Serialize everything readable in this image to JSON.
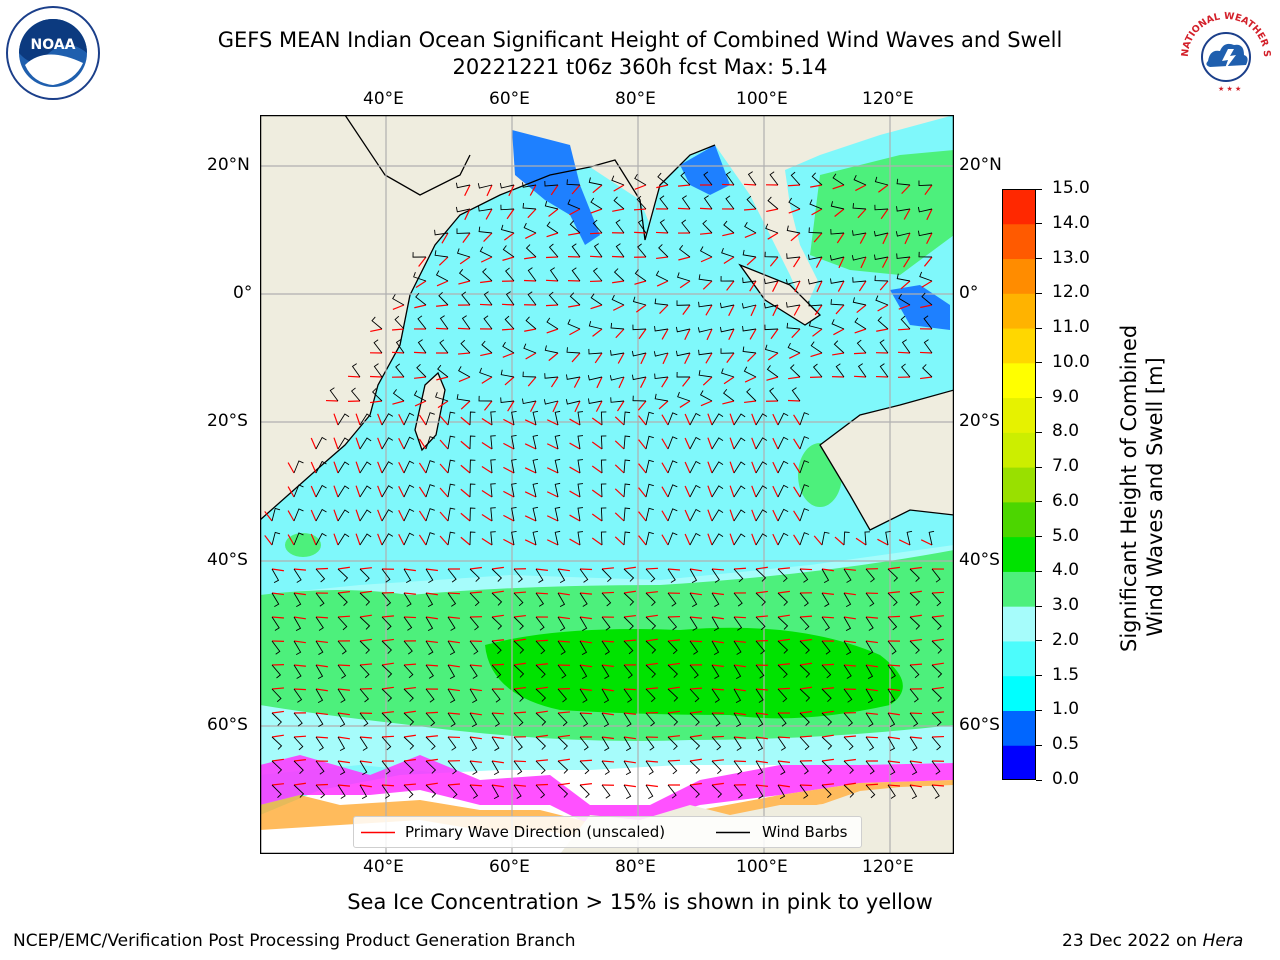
{
  "title": {
    "line1": "GEFS MEAN Indian Ocean Significant Height of Combined Wind Waves and Swell",
    "line2": "20221221 t06z 360h fcst   Max: 5.14"
  },
  "logos": {
    "left": "NOAA",
    "right": "NATIONAL WEATHER SERVICE"
  },
  "map": {
    "lon_labels": [
      "40°E",
      "60°E",
      "80°E",
      "100°E",
      "120°E"
    ],
    "lat_labels": [
      "20°N",
      "0°",
      "20°S",
      "40°S",
      "60°S"
    ],
    "colors": {
      "land": "#efeddf",
      "sea_base": "#7ff8fb",
      "sea_light": "#a6fcfb",
      "wave_green_light": "#4df07c",
      "wave_green": "#00e300",
      "wave_blue": "#1e80ff",
      "wave_darkblue": "#0000ff",
      "ice_magenta": "#ff33ff",
      "ice_orange": "#ffaa33",
      "ice_white": "#ffffff"
    }
  },
  "colorbar": {
    "ticks": [
      "0.0",
      "0.5",
      "1.0",
      "1.5",
      "2.0",
      "3.0",
      "4.0",
      "5.0",
      "6.0",
      "7.0",
      "8.0",
      "9.0",
      "10.0",
      "11.0",
      "12.0",
      "13.0",
      "14.0",
      "15.0"
    ],
    "colors": [
      "#0000ff",
      "#0066ff",
      "#00ffff",
      "#4cfcfc",
      "#a6fcfb",
      "#4df07c",
      "#00e300",
      "#4cd600",
      "#99e000",
      "#ccee00",
      "#e6f200",
      "#ffff00",
      "#ffd700",
      "#ffb300",
      "#ff8c00",
      "#ff5a00",
      "#ff2800",
      "#ff0000"
    ],
    "label_line1": "Significant Height of Combined",
    "label_line2": "Wind Waves and Swell [m]"
  },
  "legend": {
    "wave_direction": "Primary Wave Direction (unscaled)",
    "wind_barbs": "Wind Barbs",
    "wave_color": "#ff0000",
    "barb_color": "#000000"
  },
  "caption": "Sea Ice Concentration > 15% is shown in pink to yellow",
  "footer": {
    "left": "NCEP/EMC/Verification Post Processing Product Generation Branch",
    "right_prefix": "23 Dec 2022 on ",
    "right_host": "Hera"
  }
}
